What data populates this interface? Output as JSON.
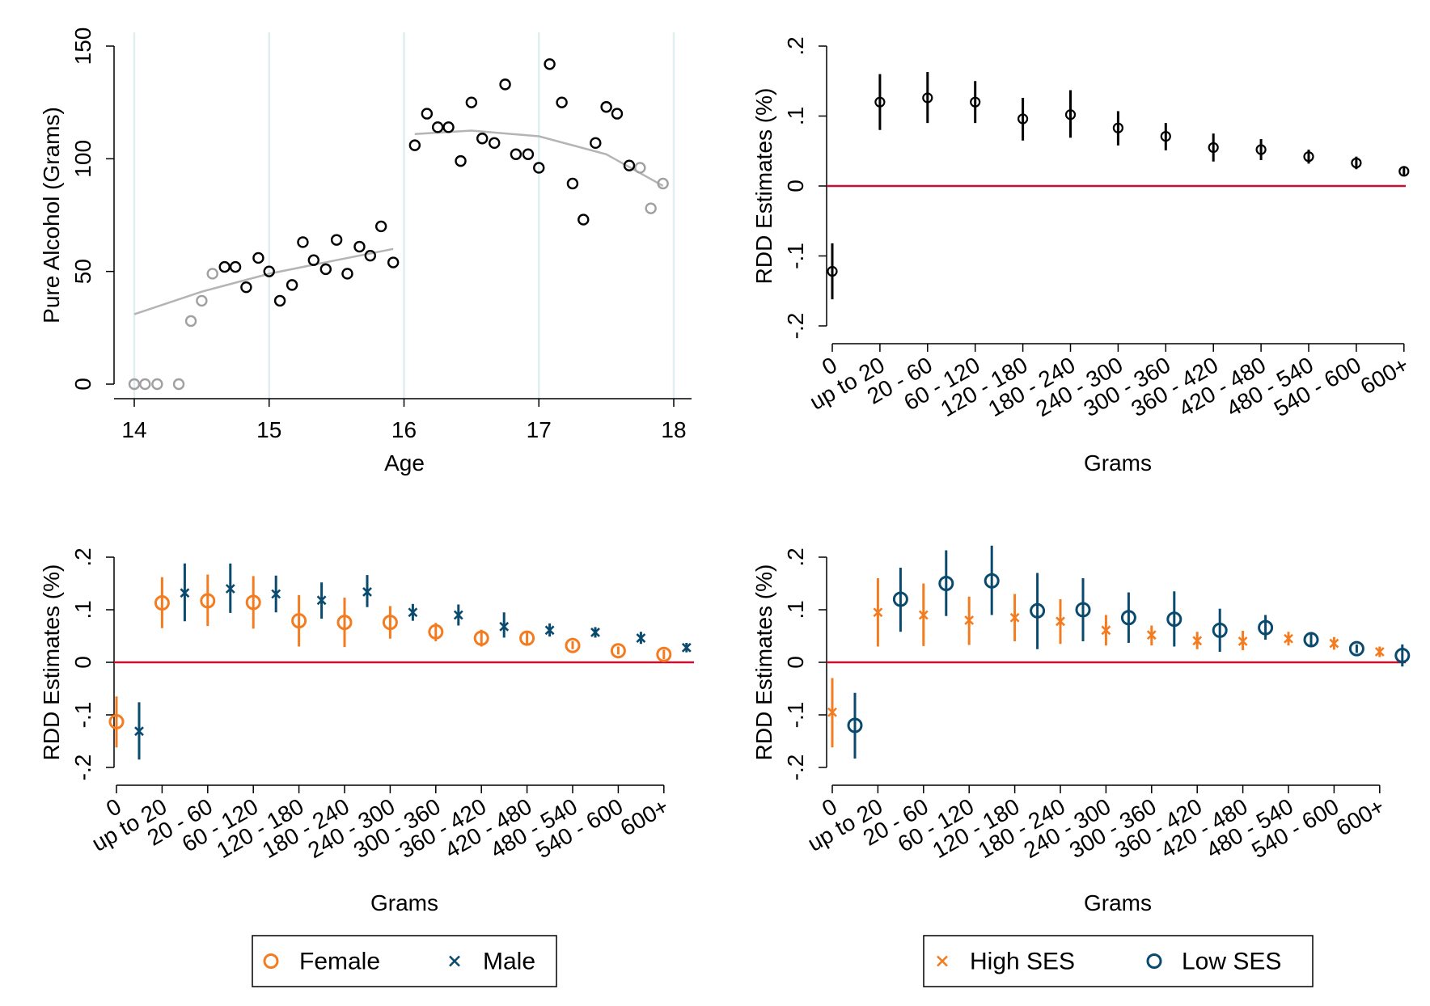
{
  "colors": {
    "black": "#000000",
    "gray": "#a0a0a0",
    "fit": "#b4b4b4",
    "red": "#c8102e",
    "orange": "#f47c20",
    "navy": "#0a4a6e",
    "vline": "#e1eef0"
  },
  "grams_categories": [
    "0",
    "up to 20",
    "20 - 60",
    "60 - 120",
    "120 - 180",
    "180 - 240",
    "240 - 300",
    "300 - 360",
    "360 - 420",
    "420 - 480",
    "480 - 540",
    "540 - 600",
    "600+"
  ],
  "chart_data": [
    {
      "type": "scatter",
      "xlabel": "Age",
      "ylabel": "Pure Alcohol (Grams)",
      "xlim": [
        14,
        18
      ],
      "ylim": [
        0,
        150
      ],
      "xticks": [
        "14",
        "15",
        "16",
        "17",
        "18"
      ],
      "yticks": [
        "0",
        "50",
        "100",
        "150"
      ],
      "reference_lines_x": [
        14,
        15,
        16,
        17,
        18
      ],
      "points_gray": [
        [
          14.0,
          0
        ],
        [
          14.08,
          0
        ],
        [
          14.17,
          0
        ],
        [
          14.33,
          0
        ],
        [
          14.42,
          28
        ],
        [
          14.5,
          37
        ],
        [
          14.58,
          49
        ],
        [
          17.75,
          96
        ],
        [
          17.83,
          78
        ],
        [
          17.92,
          89
        ]
      ],
      "points_black": [
        [
          14.67,
          52
        ],
        [
          14.75,
          52
        ],
        [
          14.83,
          43
        ],
        [
          14.92,
          56
        ],
        [
          15.0,
          50
        ],
        [
          15.08,
          37
        ],
        [
          15.17,
          44
        ],
        [
          15.25,
          63
        ],
        [
          15.33,
          55
        ],
        [
          15.42,
          51
        ],
        [
          15.5,
          64
        ],
        [
          15.58,
          49
        ],
        [
          15.67,
          61
        ],
        [
          15.75,
          57
        ],
        [
          15.83,
          70
        ],
        [
          15.92,
          54
        ],
        [
          16.08,
          106
        ],
        [
          16.17,
          120
        ],
        [
          16.25,
          114
        ],
        [
          16.33,
          114
        ],
        [
          16.42,
          99
        ],
        [
          16.5,
          125
        ],
        [
          16.58,
          109
        ],
        [
          16.67,
          107
        ],
        [
          16.75,
          133
        ],
        [
          16.83,
          102
        ],
        [
          16.92,
          102
        ],
        [
          17.0,
          96
        ],
        [
          17.08,
          142
        ],
        [
          17.17,
          125
        ],
        [
          17.25,
          89
        ],
        [
          17.33,
          73
        ],
        [
          17.42,
          107
        ],
        [
          17.5,
          123
        ],
        [
          17.58,
          120
        ],
        [
          17.67,
          97
        ]
      ],
      "fit_left": [
        [
          14.0,
          31
        ],
        [
          14.5,
          41
        ],
        [
          15.0,
          49
        ],
        [
          15.5,
          55
        ],
        [
          15.92,
          60
        ]
      ],
      "fit_right": [
        [
          16.08,
          111
        ],
        [
          16.5,
          112.5
        ],
        [
          17.0,
          110
        ],
        [
          17.5,
          102
        ],
        [
          17.92,
          88
        ]
      ]
    },
    {
      "type": "scatter",
      "xlabel": "Grams",
      "ylabel": "RDD Estimates (%)",
      "ylim": [
        -0.2,
        0.2
      ],
      "yticks": [
        "-.2",
        "-.1",
        "0",
        ".1",
        ".2"
      ],
      "reference_line_y": 0,
      "series": [
        {
          "values": [
            -0.122,
            0.12,
            0.126,
            0.12,
            0.096,
            0.102,
            0.083,
            0.071,
            0.055,
            0.052,
            0.042,
            0.033,
            0.021
          ],
          "ci_low": [
            -0.162,
            0.08,
            0.09,
            0.09,
            0.065,
            0.069,
            0.058,
            0.051,
            0.035,
            0.037,
            0.032,
            0.024,
            0.014
          ],
          "ci_high": [
            -0.082,
            0.16,
            0.163,
            0.15,
            0.126,
            0.137,
            0.107,
            0.09,
            0.075,
            0.067,
            0.052,
            0.042,
            0.028
          ]
        }
      ]
    },
    {
      "type": "scatter",
      "xlabel": "Grams",
      "ylabel": "RDD Estimates (%)",
      "ylim": [
        -0.2,
        0.2
      ],
      "yticks": [
        "-.2",
        "-.1",
        "0",
        ".1",
        ".2"
      ],
      "reference_line_y": 0,
      "series": [
        {
          "name": "Female",
          "values": [
            -0.113,
            0.113,
            0.117,
            0.114,
            0.079,
            0.076,
            0.076,
            0.058,
            0.046,
            0.046,
            0.032,
            0.022,
            0.015
          ],
          "ci_low": [
            -0.162,
            0.065,
            0.069,
            0.064,
            0.03,
            0.029,
            0.045,
            0.04,
            0.03,
            0.033,
            0.025,
            0.015,
            0.006
          ],
          "ci_high": [
            -0.065,
            0.162,
            0.167,
            0.164,
            0.128,
            0.123,
            0.107,
            0.075,
            0.062,
            0.06,
            0.04,
            0.03,
            0.024
          ]
        },
        {
          "name": "Male",
          "values": [
            -0.131,
            0.132,
            0.14,
            0.13,
            0.118,
            0.134,
            0.095,
            0.09,
            0.068,
            0.061,
            0.057,
            0.046,
            0.028
          ],
          "ci_low": [
            -0.185,
            0.078,
            0.094,
            0.095,
            0.083,
            0.105,
            0.079,
            0.07,
            0.047,
            0.049,
            0.047,
            0.035,
            0.019
          ],
          "ci_high": [
            -0.076,
            0.188,
            0.188,
            0.165,
            0.152,
            0.166,
            0.111,
            0.11,
            0.095,
            0.074,
            0.067,
            0.058,
            0.037
          ]
        }
      ],
      "legend": "bottom"
    },
    {
      "type": "scatter",
      "xlabel": "Grams",
      "ylabel": "RDD Estimates (%)",
      "ylim": [
        -0.2,
        0.2
      ],
      "yticks": [
        "-.2",
        "-.1",
        "0",
        ".1",
        ".2"
      ],
      "reference_line_y": 0,
      "series": [
        {
          "name": "High SES",
          "values": [
            -0.095,
            0.095,
            0.09,
            0.08,
            0.085,
            0.078,
            0.061,
            0.052,
            0.041,
            0.04,
            0.045,
            0.036,
            0.02
          ],
          "ci_low": [
            -0.162,
            0.03,
            0.031,
            0.033,
            0.04,
            0.035,
            0.032,
            0.032,
            0.025,
            0.023,
            0.032,
            0.024,
            0.01
          ],
          "ci_high": [
            -0.03,
            0.16,
            0.15,
            0.125,
            0.13,
            0.12,
            0.09,
            0.07,
            0.058,
            0.06,
            0.058,
            0.048,
            0.03
          ]
        },
        {
          "name": "Low SES",
          "values": [
            -0.12,
            0.12,
            0.15,
            0.155,
            0.098,
            0.1,
            0.085,
            0.082,
            0.061,
            0.066,
            0.043,
            0.026,
            0.013
          ],
          "ci_low": [
            -0.183,
            0.058,
            0.088,
            0.09,
            0.025,
            0.04,
            0.037,
            0.03,
            0.02,
            0.043,
            0.03,
            0.018,
            -0.008
          ],
          "ci_high": [
            -0.058,
            0.18,
            0.213,
            0.222,
            0.17,
            0.16,
            0.133,
            0.135,
            0.102,
            0.09,
            0.057,
            0.034,
            0.034
          ]
        }
      ],
      "legend": "bottom"
    }
  ]
}
